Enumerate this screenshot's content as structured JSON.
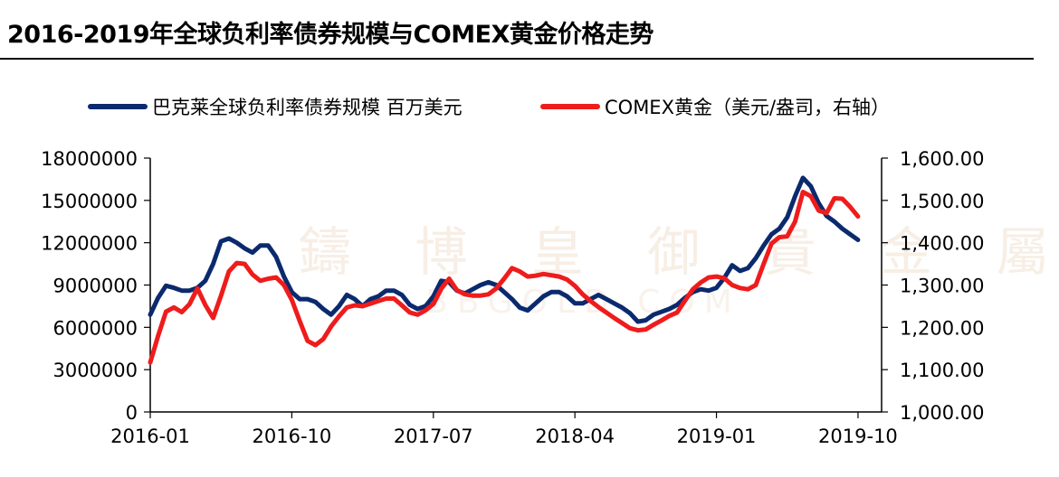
{
  "title": "2016-2019年全球负利率债券规模与COMEX黄金价格走势",
  "watermark": "鑄 博 皇 御 貴 金 屬",
  "watermark_sub": "BBGOLD.COM",
  "chart_data": {
    "type": "line",
    "title": "2016-2019年全球负利率债券规模与COMEX黄金价格走势",
    "legend_position": "top",
    "x_tick_labels": [
      "2016-01",
      "2016-10",
      "2017-07",
      "2018-04",
      "2019-01",
      "2019-10"
    ],
    "x_tick_positions": [
      0,
      9,
      18,
      27,
      36,
      45
    ],
    "x_range": [
      0,
      46.5
    ],
    "y_left": {
      "min": 0,
      "max": 18000000,
      "step": 3000000,
      "ticks": [
        "0",
        "3000000",
        "6000000",
        "9000000",
        "12000000",
        "15000000",
        "18000000"
      ]
    },
    "y_right": {
      "min": 1000,
      "max": 1600,
      "step": 100,
      "ticks": [
        "1,000.00",
        "1,100.00",
        "1,200.00",
        "1,300.00",
        "1,400.00",
        "1,500.00",
        "1,600.00"
      ]
    },
    "series": [
      {
        "name": "巴克莱全球负利率债券规模 百万美元",
        "axis": "left",
        "color": "#0b2a6e",
        "points": [
          [
            0,
            6900000
          ],
          [
            0.5,
            8100000
          ],
          [
            1,
            8950000
          ],
          [
            1.5,
            8800000
          ],
          [
            2,
            8600000
          ],
          [
            2.5,
            8600000
          ],
          [
            3,
            8800000
          ],
          [
            3.5,
            9300000
          ],
          [
            4,
            10500000
          ],
          [
            4.5,
            12100000
          ],
          [
            5,
            12300000
          ],
          [
            5.5,
            12000000
          ],
          [
            6,
            11600000
          ],
          [
            6.5,
            11300000
          ],
          [
            7,
            11800000
          ],
          [
            7.5,
            11800000
          ],
          [
            8,
            11000000
          ],
          [
            8.5,
            9600000
          ],
          [
            9,
            8500000
          ],
          [
            9.5,
            8000000
          ],
          [
            10,
            8000000
          ],
          [
            10.5,
            7800000
          ],
          [
            11,
            7300000
          ],
          [
            11.5,
            6900000
          ],
          [
            12,
            7500000
          ],
          [
            12.5,
            8300000
          ],
          [
            13,
            8000000
          ],
          [
            13.5,
            7500000
          ],
          [
            14,
            8000000
          ],
          [
            14.5,
            8200000
          ],
          [
            15,
            8600000
          ],
          [
            15.5,
            8600000
          ],
          [
            16,
            8300000
          ],
          [
            16.5,
            7600000
          ],
          [
            17,
            7300000
          ],
          [
            17.5,
            7500000
          ],
          [
            18,
            8200000
          ],
          [
            18.5,
            9300000
          ],
          [
            19,
            9200000
          ],
          [
            19.5,
            8600000
          ],
          [
            20,
            8400000
          ],
          [
            20.5,
            8700000
          ],
          [
            21,
            9000000
          ],
          [
            21.5,
            9200000
          ],
          [
            22,
            9000000
          ],
          [
            22.5,
            8500000
          ],
          [
            23,
            8000000
          ],
          [
            23.5,
            7400000
          ],
          [
            24,
            7200000
          ],
          [
            24.5,
            7700000
          ],
          [
            25,
            8200000
          ],
          [
            25.5,
            8500000
          ],
          [
            26,
            8500000
          ],
          [
            26.5,
            8200000
          ],
          [
            27,
            7700000
          ],
          [
            27.5,
            7700000
          ],
          [
            28,
            8000000
          ],
          [
            28.5,
            8300000
          ],
          [
            29,
            8000000
          ],
          [
            29.5,
            7700000
          ],
          [
            30,
            7400000
          ],
          [
            30.5,
            7000000
          ],
          [
            31,
            6400000
          ],
          [
            31.5,
            6500000
          ],
          [
            32,
            6900000
          ],
          [
            32.5,
            7100000
          ],
          [
            33,
            7300000
          ],
          [
            33.5,
            7600000
          ],
          [
            34,
            8100000
          ],
          [
            34.5,
            8500000
          ],
          [
            35,
            8700000
          ],
          [
            35.5,
            8600000
          ],
          [
            36,
            8800000
          ],
          [
            36.5,
            9500000
          ],
          [
            37,
            10400000
          ],
          [
            37.5,
            10000000
          ],
          [
            38,
            10200000
          ],
          [
            38.5,
            10900000
          ],
          [
            39,
            11800000
          ],
          [
            39.5,
            12600000
          ],
          [
            40,
            13000000
          ],
          [
            40.5,
            13800000
          ],
          [
            41,
            15300000
          ],
          [
            41.5,
            16600000
          ],
          [
            42,
            16000000
          ],
          [
            42.5,
            14800000
          ],
          [
            43,
            13900000
          ],
          [
            43.5,
            13500000
          ],
          [
            44,
            13000000
          ],
          [
            44.5,
            12600000
          ],
          [
            45,
            12200000
          ]
        ]
      },
      {
        "name": "COMEX黄金（美元/盎司，右轴）",
        "axis": "right",
        "color": "#ee1c1c",
        "points": [
          [
            0,
            1117
          ],
          [
            0.5,
            1180
          ],
          [
            1,
            1237
          ],
          [
            1.5,
            1247
          ],
          [
            2,
            1236
          ],
          [
            2.5,
            1255
          ],
          [
            3,
            1292
          ],
          [
            3.5,
            1253
          ],
          [
            4,
            1222
          ],
          [
            4.5,
            1275
          ],
          [
            5,
            1332
          ],
          [
            5.5,
            1352
          ],
          [
            6,
            1350
          ],
          [
            6.5,
            1325
          ],
          [
            7,
            1310
          ],
          [
            7.5,
            1315
          ],
          [
            8,
            1318
          ],
          [
            8.5,
            1300
          ],
          [
            9,
            1265
          ],
          [
            9.5,
            1215
          ],
          [
            10,
            1168
          ],
          [
            10.5,
            1158
          ],
          [
            11,
            1172
          ],
          [
            11.5,
            1202
          ],
          [
            12,
            1226
          ],
          [
            12.5,
            1247
          ],
          [
            13,
            1252
          ],
          [
            13.5,
            1250
          ],
          [
            14,
            1256
          ],
          [
            14.5,
            1262
          ],
          [
            15,
            1268
          ],
          [
            15.5,
            1268
          ],
          [
            16,
            1252
          ],
          [
            16.5,
            1235
          ],
          [
            17,
            1230
          ],
          [
            17.5,
            1240
          ],
          [
            18,
            1255
          ],
          [
            18.5,
            1291
          ],
          [
            19,
            1315
          ],
          [
            19.5,
            1288
          ],
          [
            20,
            1278
          ],
          [
            20.5,
            1275
          ],
          [
            21,
            1275
          ],
          [
            21.5,
            1278
          ],
          [
            22,
            1292
          ],
          [
            22.5,
            1315
          ],
          [
            23,
            1340
          ],
          [
            23.5,
            1332
          ],
          [
            24,
            1320
          ],
          [
            24.5,
            1322
          ],
          [
            25,
            1326
          ],
          [
            25.5,
            1323
          ],
          [
            26,
            1320
          ],
          [
            26.5,
            1313
          ],
          [
            27,
            1298
          ],
          [
            27.5,
            1278
          ],
          [
            28,
            1262
          ],
          [
            28.5,
            1248
          ],
          [
            29,
            1235
          ],
          [
            29.5,
            1222
          ],
          [
            30,
            1210
          ],
          [
            30.5,
            1198
          ],
          [
            31,
            1193
          ],
          [
            31.5,
            1195
          ],
          [
            32,
            1206
          ],
          [
            32.5,
            1216
          ],
          [
            33,
            1227
          ],
          [
            33.5,
            1235
          ],
          [
            34,
            1263
          ],
          [
            34.5,
            1290
          ],
          [
            35,
            1306
          ],
          [
            35.5,
            1318
          ],
          [
            36,
            1320
          ],
          [
            36.5,
            1316
          ],
          [
            37,
            1300
          ],
          [
            37.5,
            1293
          ],
          [
            38,
            1290
          ],
          [
            38.5,
            1300
          ],
          [
            39,
            1350
          ],
          [
            39.5,
            1398
          ],
          [
            40,
            1413
          ],
          [
            40.5,
            1415
          ],
          [
            41,
            1450
          ],
          [
            41.5,
            1520
          ],
          [
            42,
            1510
          ],
          [
            42.5,
            1476
          ],
          [
            43,
            1470
          ],
          [
            43.5,
            1505
          ],
          [
            44,
            1504
          ],
          [
            44.5,
            1485
          ],
          [
            45,
            1462
          ]
        ]
      }
    ]
  }
}
